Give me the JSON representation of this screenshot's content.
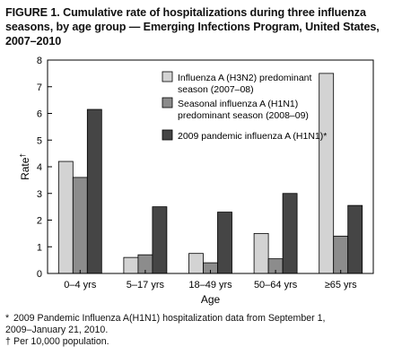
{
  "title": "FIGURE 1. Cumulative rate of hospitalizations during three influenza seasons, by age group — Emerging Infections Program, United States, 2007–2010",
  "chart_data": {
    "type": "bar",
    "categories": [
      "0–4 yrs",
      "5–17 yrs",
      "18–49 yrs",
      "50–64 yrs",
      "≥65 yrs"
    ],
    "series": [
      {
        "name": "Influenza A (H3N2) predominant season (2007–08)",
        "legend_lines": [
          "Influenza A (H3N2) predominant",
          "season (2007–08)"
        ],
        "color": "#d3d3d3",
        "values": [
          4.2,
          0.6,
          0.75,
          1.5,
          7.5
        ]
      },
      {
        "name": "Seasonal influenza A (H1N1) predominant season (2008–09)",
        "legend_lines": [
          "Seasonal influenza A (H1N1)",
          "predominant season (2008–09)"
        ],
        "color": "#8c8c8c",
        "values": [
          3.6,
          0.7,
          0.4,
          0.55,
          1.4
        ]
      },
      {
        "name": "2009 pandemic influenza A (H1N1)*",
        "legend_lines": [
          "2009 pandemic influenza A (H1N1)*"
        ],
        "color": "#454545",
        "values": [
          6.15,
          2.5,
          2.3,
          3.0,
          2.55
        ]
      }
    ],
    "xlabel": "Age",
    "ylabel": "Rate",
    "ylabel_mark": "†",
    "ylim": [
      0,
      8
    ],
    "yticks": [
      0,
      1,
      2,
      3,
      4,
      5,
      6,
      7,
      8
    ],
    "grid": false,
    "legend_position": "top-right"
  },
  "footnotes": [
    {
      "mark": "*",
      "lines": [
        "2009 Pandemic Influenza A(H1N1) hospitalization data from September 1,",
        "2009–January 21, 2010."
      ]
    },
    {
      "mark": "†",
      "lines": [
        "Per 10,000 population."
      ]
    }
  ]
}
